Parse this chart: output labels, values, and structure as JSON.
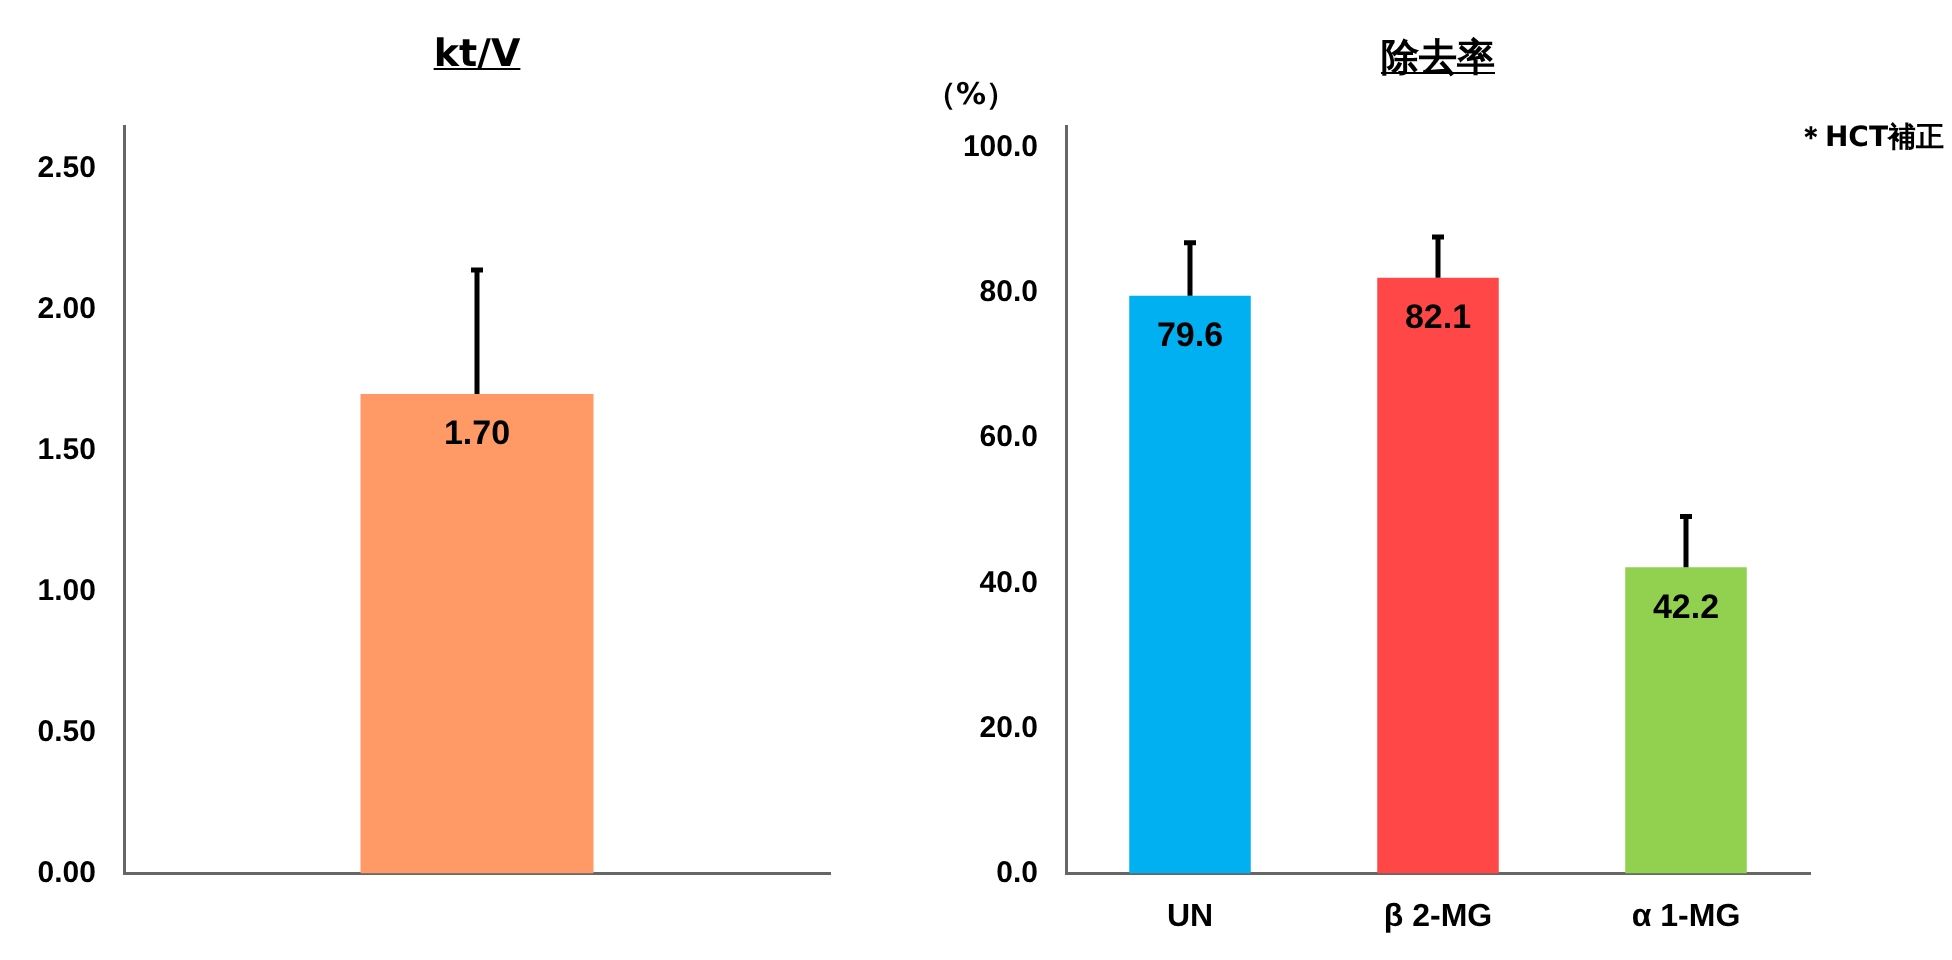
{
  "chart_data": [
    {
      "type": "bar",
      "title": "kt/V",
      "categories": [
        null
      ],
      "values": [
        1.7
      ],
      "colors": [
        "#ff9966"
      ],
      "errors": [
        [
          1.7,
          2.14
        ]
      ],
      "value_labels": [
        "1.70"
      ],
      "ylim": [
        0,
        2.65
      ],
      "yticks": [
        {
          "value": 0,
          "label": "0.00"
        },
        {
          "value": 0.5,
          "label": "0.50"
        },
        {
          "value": 1,
          "label": "1.00"
        },
        {
          "value": 1.5,
          "label": "1.50"
        },
        {
          "value": 2,
          "label": "2.00"
        },
        {
          "value": 2.5,
          "label": "2.50"
        }
      ],
      "grid": false,
      "legend": false
    },
    {
      "type": "bar",
      "title": "除去率",
      "ylabel": "（%）",
      "annotations": [
        "＊HCT補正"
      ],
      "categories": [
        "UN",
        "β 2-MG",
        "α 1-MG"
      ],
      "values": [
        79.6,
        82.1,
        42.2
      ],
      "colors": [
        "#00b0f0",
        "#ff4747",
        "#92d050"
      ],
      "errors": [
        [
          79.6,
          86.9
        ],
        [
          82.1,
          87.7
        ],
        [
          42.2,
          49.2
        ]
      ],
      "data_labels": true,
      "ylim": [
        0,
        103
      ],
      "yticks": [
        {
          "value": 0,
          "label": "0.0"
        },
        {
          "value": 20,
          "label": "20.0"
        },
        {
          "value": 40,
          "label": "40.0"
        },
        {
          "value": 60,
          "label": "60.0"
        },
        {
          "value": 80,
          "label": "80.0"
        },
        {
          "value": 100,
          "label": "100.0"
        }
      ],
      "grid": false,
      "legend": false
    }
  ]
}
